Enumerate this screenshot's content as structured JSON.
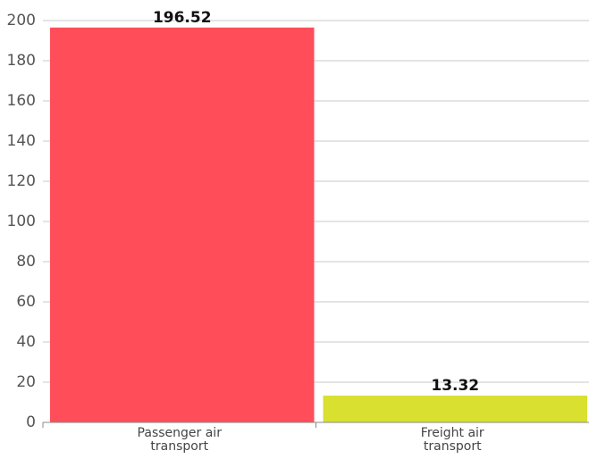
{
  "chart_data": {
    "type": "bar",
    "categories": [
      "Passenger air transport",
      "Freight air transport"
    ],
    "values": [
      196.52,
      13.32
    ],
    "colors": [
      "#ff4d5a",
      "#d9e030"
    ],
    "ylim": [
      0,
      200
    ],
    "yticks": [
      0,
      20,
      40,
      60,
      80,
      100,
      120,
      140,
      160,
      180,
      200
    ],
    "grid": true
  }
}
